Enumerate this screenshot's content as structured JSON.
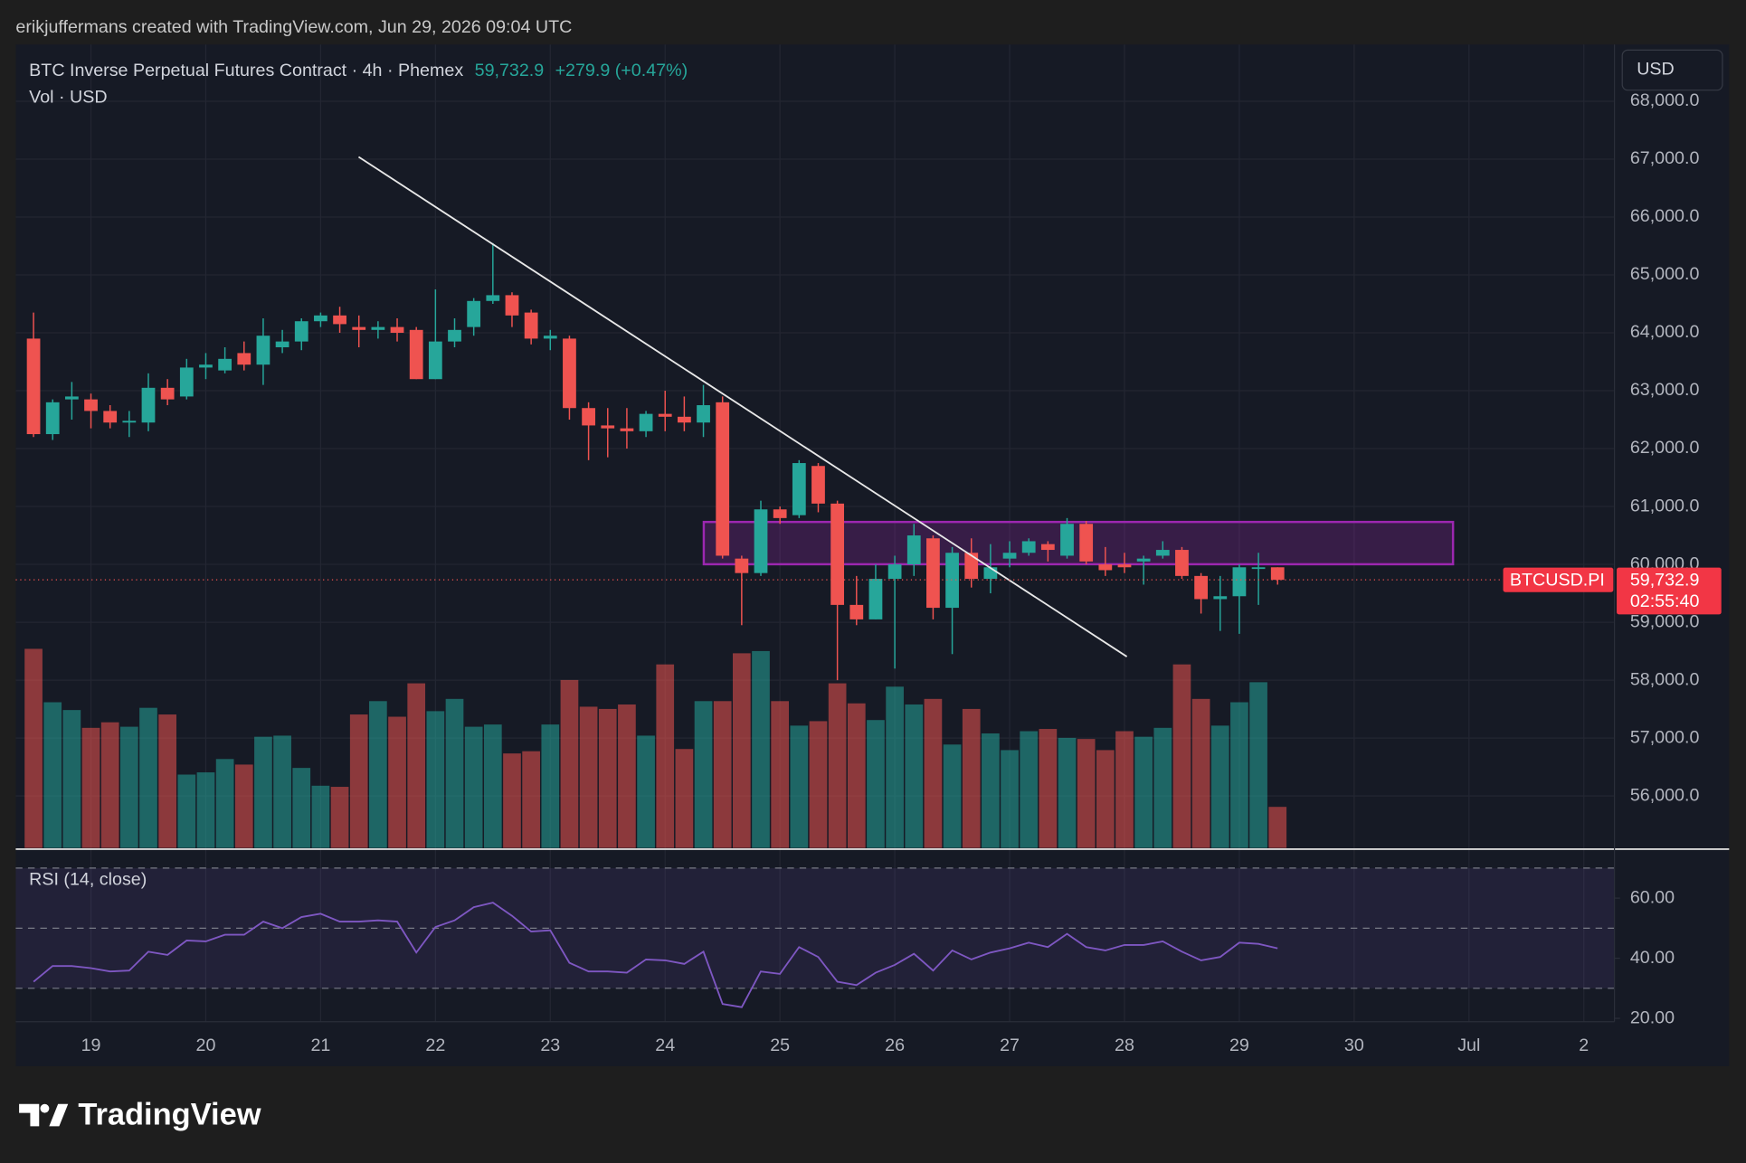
{
  "header": {
    "attribution": "erikjuffermans created with TradingView.com, Jun 29, 2026 09:04 UTC",
    "logo": "TradingView"
  },
  "chart_data": {
    "type": "candlestick",
    "title": "BTC Inverse Perpetual Futures Contract · 4h · Phemex",
    "change": "+279.9 (+0.47%)",
    "volume_label": "Vol · USD",
    "currency_button": "USD",
    "symbol_tag": "BTCUSD.PI",
    "countdown": "02:55:40",
    "last_price": {
      "value": 59732.9,
      "label": "59,732.9"
    },
    "up_color": "#26a69a",
    "down_color": "#ef5350",
    "candles": {
      "open": [
        63900,
        62250,
        62850,
        62850,
        62650,
        62450,
        62450,
        63050,
        62900,
        63400,
        63350,
        63650,
        63450,
        63750,
        63850,
        64200,
        64300,
        64100,
        64050,
        64100,
        64050,
        63200,
        63850,
        64100,
        64550,
        64650,
        64350,
        63900,
        63900,
        62700,
        62400,
        62350,
        62300,
        62600,
        62550,
        62450,
        62800,
        60100,
        59850,
        60950,
        60850,
        61700,
        61050,
        59300,
        59050,
        59750,
        60000,
        60450,
        59250,
        60200,
        59750,
        60100,
        60200,
        60350,
        60150,
        60700,
        60000,
        60000,
        60050,
        60150,
        60250,
        59800,
        59400,
        59450,
        59950,
        59950
      ],
      "high": [
        64350,
        62850,
        63150,
        62950,
        62750,
        62650,
        63300,
        63200,
        63550,
        63650,
        63750,
        63850,
        64250,
        64050,
        64250,
        64350,
        64450,
        64300,
        64200,
        64250,
        64100,
        64750,
        64250,
        64600,
        65550,
        64700,
        64400,
        64050,
        63950,
        62800,
        62700,
        62700,
        62650,
        63000,
        62900,
        63100,
        62900,
        60150,
        61100,
        61000,
        61800,
        61750,
        61100,
        59800,
        60000,
        60150,
        60700,
        60500,
        60300,
        60450,
        60350,
        60400,
        60450,
        60400,
        60800,
        60750,
        60300,
        60200,
        60150,
        60400,
        60300,
        59850,
        59800,
        60000,
        60200,
        59950
      ],
      "low": [
        62200,
        62150,
        62500,
        62350,
        62350,
        62200,
        62300,
        62750,
        62850,
        63200,
        63300,
        63350,
        63100,
        63650,
        63700,
        64100,
        64000,
        63750,
        63900,
        63850,
        63200,
        63200,
        63750,
        63950,
        64500,
        64100,
        63800,
        63700,
        62500,
        61800,
        61850,
        62000,
        62200,
        62300,
        62300,
        62200,
        60100,
        58950,
        59800,
        60700,
        60800,
        60900,
        58000,
        58950,
        59050,
        58200,
        59800,
        59050,
        58450,
        59600,
        59500,
        59950,
        60150,
        60050,
        60100,
        60000,
        59800,
        59850,
        59650,
        60100,
        59750,
        59150,
        58850,
        58800,
        59300,
        59650
      ],
      "close": [
        62250,
        62800,
        62900,
        62650,
        62450,
        62480,
        63050,
        62850,
        63400,
        63450,
        63550,
        63450,
        63950,
        63850,
        64200,
        64300,
        64150,
        64050,
        64100,
        64000,
        63200,
        63850,
        64050,
        64550,
        64650,
        64300,
        63900,
        63950,
        62700,
        62400,
        62350,
        62300,
        62600,
        62550,
        62450,
        62750,
        60150,
        59850,
        60950,
        60800,
        61750,
        61050,
        59300,
        59050,
        59750,
        60000,
        60500,
        59250,
        60200,
        59750,
        59950,
        60200,
        60400,
        60250,
        60700,
        60050,
        59900,
        59950,
        60100,
        60250,
        59800,
        59400,
        59450,
        59950,
        59950,
        59733
      ]
    },
    "volume": [
      179,
      131,
      124,
      108,
      113,
      109,
      126,
      120,
      66,
      68,
      80,
      75,
      100,
      101,
      72,
      56,
      55,
      120,
      132,
      118,
      148,
      123,
      134,
      109,
      111,
      85,
      87,
      111,
      151,
      127,
      125,
      129,
      101,
      165,
      89,
      132,
      132,
      175,
      177,
      132,
      110,
      114,
      148,
      130,
      115,
      145,
      129,
      134,
      93,
      125,
      103,
      88,
      105,
      107,
      99,
      98,
      88,
      105,
      100,
      108,
      165,
      134,
      110,
      131,
      149,
      37
    ],
    "xlim": [
      -0.87,
      82.6
    ],
    "xticks": [
      {
        "value": 3,
        "label": "19"
      },
      {
        "value": 9,
        "label": "20"
      },
      {
        "value": 15,
        "label": "21"
      },
      {
        "value": 21,
        "label": "22"
      },
      {
        "value": 27,
        "label": "23"
      },
      {
        "value": 33,
        "label": "24"
      },
      {
        "value": 39,
        "label": "25"
      },
      {
        "value": 45,
        "label": "26"
      },
      {
        "value": 51,
        "label": "27"
      },
      {
        "value": 57,
        "label": "28"
      },
      {
        "value": 63,
        "label": "29"
      },
      {
        "value": 69,
        "label": "30"
      },
      {
        "value": 75,
        "label": "Jul"
      },
      {
        "value": 81,
        "label": "2"
      }
    ],
    "ylim": [
      55100,
      68980
    ],
    "yticks": [
      {
        "value": 56000,
        "label": "56,000.0"
      },
      {
        "value": 57000,
        "label": "57,000.0"
      },
      {
        "value": 58000,
        "label": "58,000.0"
      },
      {
        "value": 59000,
        "label": "59,000.0"
      },
      {
        "value": 60000,
        "label": "60,000.0"
      },
      {
        "value": 61000,
        "label": "61,000.0"
      },
      {
        "value": 62000,
        "label": "62,000.0"
      },
      {
        "value": 63000,
        "label": "63,000.0"
      },
      {
        "value": 64000,
        "label": "64,000.0"
      },
      {
        "value": 65000,
        "label": "65,000.0"
      },
      {
        "value": 66000,
        "label": "66,000.0"
      },
      {
        "value": 67000,
        "label": "67,000.0"
      },
      {
        "value": 68000,
        "label": "68,000.0"
      }
    ],
    "grid": true,
    "rsi": {
      "name": "RSI (14, close)",
      "color": "#7e57c2",
      "values": [
        32.2,
        37.4,
        37.4,
        36.7,
        35.6,
        35.9,
        42.2,
        41.1,
        45.9,
        45.6,
        47.8,
        47.8,
        52.2,
        50,
        53.7,
        54.8,
        52.2,
        52.2,
        52.6,
        52.2,
        41.9,
        50.4,
        52.6,
        57,
        58.5,
        54.1,
        48.9,
        49.3,
        38.5,
        35.6,
        35.6,
        35.2,
        39.6,
        39.3,
        38.1,
        42.2,
        24.8,
        23.7,
        35.6,
        34.8,
        43.7,
        40.4,
        32.2,
        31.1,
        35.2,
        37.8,
        41.5,
        35.9,
        42.6,
        39.6,
        41.9,
        43.3,
        45.2,
        43.7,
        48.1,
        43.7,
        42.6,
        44.4,
        44.4,
        45.6,
        42.2,
        39.3,
        40.4,
        45.2,
        44.8,
        43.3
      ],
      "ylim": [
        18.9,
        73.7
      ],
      "yticks": [
        {
          "value": 60,
          "label": "60.00"
        },
        {
          "value": 40,
          "label": "40.00"
        },
        {
          "value": 20,
          "label": "20.00"
        }
      ],
      "levels": [
        70,
        50,
        30
      ]
    }
  }
}
